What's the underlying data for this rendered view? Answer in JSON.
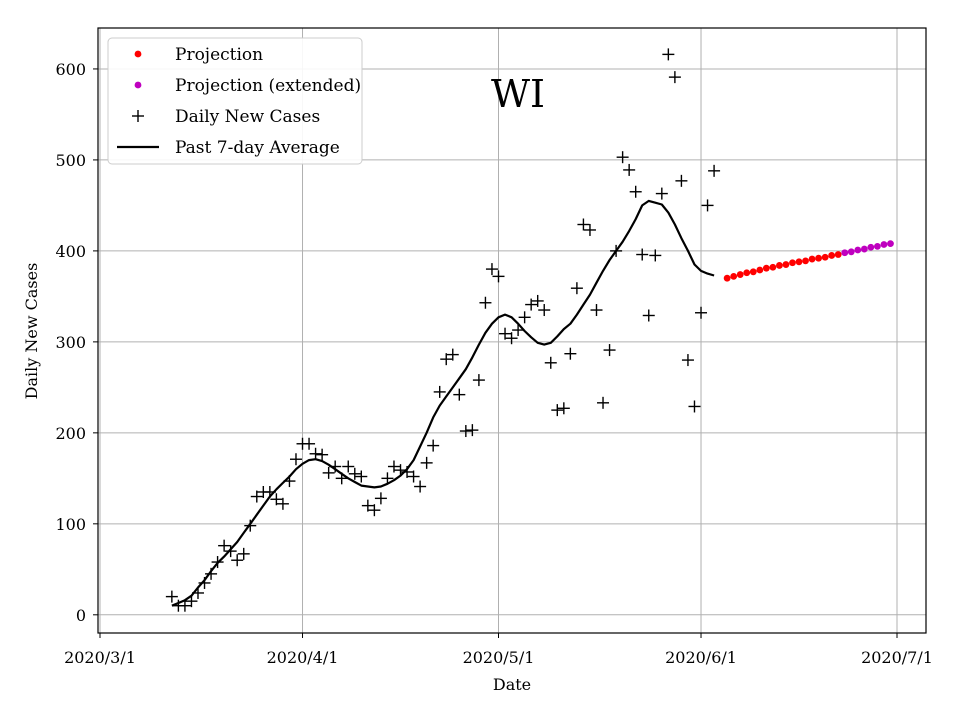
{
  "chart_data": {
    "type": "line",
    "title": "WI",
    "xlabel": "Date",
    "ylabel": "Daily New Cases",
    "xlim": [
      "2020-03-01",
      "2020-07-01"
    ],
    "ylim": [
      -20,
      645
    ],
    "x_ticks": [
      {
        "date": "2020-03-01",
        "label": "2020/3/1"
      },
      {
        "date": "2020-04-01",
        "label": "2020/4/1"
      },
      {
        "date": "2020-05-01",
        "label": "2020/5/1"
      },
      {
        "date": "2020-06-01",
        "label": "2020/6/1"
      },
      {
        "date": "2020-07-01",
        "label": "2020/7/1"
      }
    ],
    "y_ticks": [
      0,
      100,
      200,
      300,
      400,
      500,
      600
    ],
    "grid": true,
    "legend_position": "top-left",
    "colors": {
      "projection": "#ff0000",
      "projection_extended": "#bf00bf",
      "daily": "#000000",
      "average": "#000000"
    },
    "series": [
      {
        "name": "Projection",
        "style": "dots",
        "points": [
          [
            "2020-06-05",
            370
          ],
          [
            "2020-06-06",
            372
          ],
          [
            "2020-06-07",
            374
          ],
          [
            "2020-06-08",
            376
          ],
          [
            "2020-06-09",
            377
          ],
          [
            "2020-06-10",
            379
          ],
          [
            "2020-06-11",
            381
          ],
          [
            "2020-06-12",
            382
          ],
          [
            "2020-06-13",
            384
          ],
          [
            "2020-06-14",
            385
          ],
          [
            "2020-06-15",
            387
          ],
          [
            "2020-06-16",
            388
          ],
          [
            "2020-06-17",
            389
          ],
          [
            "2020-06-18",
            391
          ],
          [
            "2020-06-19",
            392
          ],
          [
            "2020-06-20",
            393
          ],
          [
            "2020-06-21",
            395
          ],
          [
            "2020-06-22",
            396
          ]
        ]
      },
      {
        "name": "Projection (extended)",
        "style": "dots",
        "points": [
          [
            "2020-06-23",
            398
          ],
          [
            "2020-06-24",
            399
          ],
          [
            "2020-06-25",
            401
          ],
          [
            "2020-06-26",
            402
          ],
          [
            "2020-06-27",
            404
          ],
          [
            "2020-06-28",
            405
          ],
          [
            "2020-06-29",
            407
          ],
          [
            "2020-06-30",
            408
          ]
        ]
      },
      {
        "name": "Daily New Cases",
        "style": "plus",
        "points": [
          [
            "2020-03-12",
            20
          ],
          [
            "2020-03-13",
            10
          ],
          [
            "2020-03-14",
            10
          ],
          [
            "2020-03-15",
            15
          ],
          [
            "2020-03-16",
            24
          ],
          [
            "2020-03-17",
            35
          ],
          [
            "2020-03-18",
            45
          ],
          [
            "2020-03-19",
            58
          ],
          [
            "2020-03-20",
            76
          ],
          [
            "2020-03-21",
            70
          ],
          [
            "2020-03-22",
            60
          ],
          [
            "2020-03-23",
            67
          ],
          [
            "2020-03-24",
            98
          ],
          [
            "2020-03-25",
            130
          ],
          [
            "2020-03-26",
            135
          ],
          [
            "2020-03-27",
            135
          ],
          [
            "2020-03-28",
            127
          ],
          [
            "2020-03-29",
            122
          ],
          [
            "2020-03-30",
            147
          ],
          [
            "2020-03-31",
            171
          ],
          [
            "2020-04-01",
            188
          ],
          [
            "2020-04-02",
            188
          ],
          [
            "2020-04-03",
            177
          ],
          [
            "2020-04-04",
            176
          ],
          [
            "2020-04-05",
            156
          ],
          [
            "2020-04-06",
            163
          ],
          [
            "2020-04-07",
            150
          ],
          [
            "2020-04-08",
            163
          ],
          [
            "2020-04-09",
            155
          ],
          [
            "2020-04-10",
            152
          ],
          [
            "2020-04-11",
            120
          ],
          [
            "2020-04-12",
            115
          ],
          [
            "2020-04-13",
            128
          ],
          [
            "2020-04-14",
            150
          ],
          [
            "2020-04-15",
            163
          ],
          [
            "2020-04-16",
            159
          ],
          [
            "2020-04-17",
            157
          ],
          [
            "2020-04-18",
            152
          ],
          [
            "2020-04-19",
            141
          ],
          [
            "2020-04-20",
            167
          ],
          [
            "2020-04-21",
            186
          ],
          [
            "2020-04-22",
            245
          ],
          [
            "2020-04-23",
            281
          ],
          [
            "2020-04-24",
            286
          ],
          [
            "2020-04-25",
            242
          ],
          [
            "2020-04-26",
            202
          ],
          [
            "2020-04-27",
            203
          ],
          [
            "2020-04-28",
            258
          ],
          [
            "2020-04-29",
            343
          ],
          [
            "2020-04-30",
            380
          ],
          [
            "2020-05-01",
            372
          ],
          [
            "2020-05-02",
            309
          ],
          [
            "2020-05-03",
            304
          ],
          [
            "2020-05-04",
            313
          ],
          [
            "2020-05-05",
            327
          ],
          [
            "2020-05-06",
            341
          ],
          [
            "2020-05-07",
            345
          ],
          [
            "2020-05-08",
            335
          ],
          [
            "2020-05-09",
            277
          ],
          [
            "2020-05-10",
            225
          ],
          [
            "2020-05-11",
            227
          ],
          [
            "2020-05-12",
            287
          ],
          [
            "2020-05-13",
            359
          ],
          [
            "2020-05-14",
            429
          ],
          [
            "2020-05-15",
            423
          ],
          [
            "2020-05-16",
            335
          ],
          [
            "2020-05-17",
            233
          ],
          [
            "2020-05-18",
            291
          ],
          [
            "2020-05-19",
            400
          ],
          [
            "2020-05-20",
            503
          ],
          [
            "2020-05-21",
            489
          ],
          [
            "2020-05-22",
            465
          ],
          [
            "2020-05-23",
            396
          ],
          [
            "2020-05-24",
            329
          ],
          [
            "2020-05-25",
            395
          ],
          [
            "2020-05-26",
            463
          ],
          [
            "2020-05-27",
            616
          ],
          [
            "2020-05-28",
            591
          ],
          [
            "2020-05-29",
            477
          ],
          [
            "2020-05-30",
            280
          ],
          [
            "2020-05-31",
            229
          ],
          [
            "2020-06-01",
            332
          ],
          [
            "2020-06-02",
            450
          ],
          [
            "2020-06-03",
            488
          ]
        ]
      },
      {
        "name": "Past 7-day Average",
        "style": "line",
        "points": [
          [
            "2020-03-12",
            10
          ],
          [
            "2020-03-13",
            13
          ],
          [
            "2020-03-14",
            16
          ],
          [
            "2020-03-15",
            21
          ],
          [
            "2020-03-16",
            30
          ],
          [
            "2020-03-17",
            38
          ],
          [
            "2020-03-18",
            48
          ],
          [
            "2020-03-19",
            57
          ],
          [
            "2020-03-20",
            64
          ],
          [
            "2020-03-21",
            72
          ],
          [
            "2020-03-22",
            80
          ],
          [
            "2020-03-23",
            90
          ],
          [
            "2020-03-24",
            100
          ],
          [
            "2020-03-25",
            110
          ],
          [
            "2020-03-26",
            120
          ],
          [
            "2020-03-27",
            130
          ],
          [
            "2020-03-28",
            138
          ],
          [
            "2020-03-29",
            145
          ],
          [
            "2020-03-30",
            152
          ],
          [
            "2020-03-31",
            160
          ],
          [
            "2020-04-01",
            166
          ],
          [
            "2020-04-02",
            170
          ],
          [
            "2020-04-03",
            171
          ],
          [
            "2020-04-04",
            169
          ],
          [
            "2020-04-05",
            165
          ],
          [
            "2020-04-06",
            160
          ],
          [
            "2020-04-07",
            155
          ],
          [
            "2020-04-08",
            150
          ],
          [
            "2020-04-09",
            146
          ],
          [
            "2020-04-10",
            142
          ],
          [
            "2020-04-11",
            141
          ],
          [
            "2020-04-12",
            140
          ],
          [
            "2020-04-13",
            141
          ],
          [
            "2020-04-14",
            144
          ],
          [
            "2020-04-15",
            148
          ],
          [
            "2020-04-16",
            153
          ],
          [
            "2020-04-17",
            160
          ],
          [
            "2020-04-18",
            170
          ],
          [
            "2020-04-19",
            185
          ],
          [
            "2020-04-20",
            200
          ],
          [
            "2020-04-21",
            217
          ],
          [
            "2020-04-22",
            230
          ],
          [
            "2020-04-23",
            240
          ],
          [
            "2020-04-24",
            250
          ],
          [
            "2020-04-25",
            260
          ],
          [
            "2020-04-26",
            270
          ],
          [
            "2020-04-27",
            283
          ],
          [
            "2020-04-28",
            297
          ],
          [
            "2020-04-29",
            310
          ],
          [
            "2020-04-30",
            320
          ],
          [
            "2020-05-01",
            327
          ],
          [
            "2020-05-02",
            330
          ],
          [
            "2020-05-03",
            327
          ],
          [
            "2020-05-04",
            320
          ],
          [
            "2020-05-05",
            312
          ],
          [
            "2020-05-06",
            305
          ],
          [
            "2020-05-07",
            299
          ],
          [
            "2020-05-08",
            297
          ],
          [
            "2020-05-09",
            299
          ],
          [
            "2020-05-10",
            306
          ],
          [
            "2020-05-11",
            314
          ],
          [
            "2020-05-12",
            320
          ],
          [
            "2020-05-13",
            330
          ],
          [
            "2020-05-14",
            341
          ],
          [
            "2020-05-15",
            352
          ],
          [
            "2020-05-16",
            365
          ],
          [
            "2020-05-17",
            378
          ],
          [
            "2020-05-18",
            390
          ],
          [
            "2020-05-19",
            400
          ],
          [
            "2020-05-20",
            410
          ],
          [
            "2020-05-21",
            422
          ],
          [
            "2020-05-22",
            435
          ],
          [
            "2020-05-23",
            450
          ],
          [
            "2020-05-24",
            455
          ],
          [
            "2020-05-25",
            453
          ],
          [
            "2020-05-26",
            451
          ],
          [
            "2020-05-27",
            442
          ],
          [
            "2020-05-28",
            429
          ],
          [
            "2020-05-29",
            414
          ],
          [
            "2020-05-30",
            400
          ],
          [
            "2020-05-31",
            385
          ],
          [
            "2020-06-01",
            378
          ],
          [
            "2020-06-02",
            375
          ],
          [
            "2020-06-03",
            373
          ]
        ]
      }
    ]
  }
}
